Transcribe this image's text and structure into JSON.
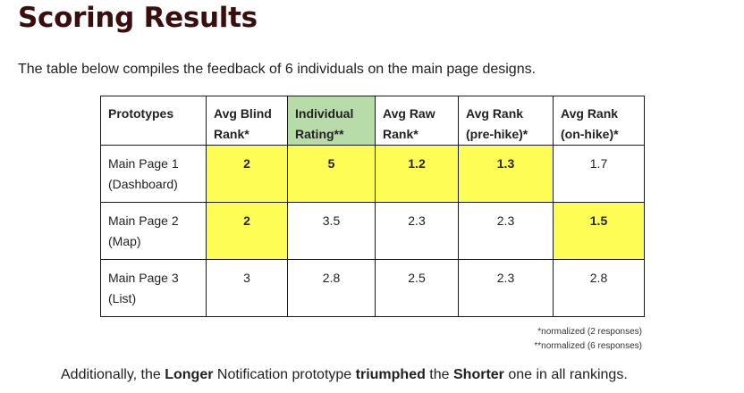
{
  "title": "Scoring Results",
  "intro": "The table below compiles the feedback of 6 individuals on the main page designs.",
  "table": {
    "headers": [
      {
        "line1": "Prototypes",
        "line2": "",
        "highlight": ""
      },
      {
        "line1": "Avg Blind",
        "line2": "Rank*",
        "highlight": ""
      },
      {
        "line1": "Individual",
        "line2": "Rating**",
        "highlight": "green"
      },
      {
        "line1": "Avg Raw",
        "line2": "Rank*",
        "highlight": ""
      },
      {
        "line1": "Avg Rank",
        "line2": "(pre-hike)*",
        "highlight": ""
      },
      {
        "line1": "Avg Rank",
        "line2": "(on-hike)*",
        "highlight": ""
      }
    ],
    "rows": [
      {
        "label1": "Main Page 1",
        "label2": "(Dashboard)",
        "cells": [
          {
            "value": "2",
            "best": true
          },
          {
            "value": "5",
            "best": true
          },
          {
            "value": "1.2",
            "best": true
          },
          {
            "value": "1.3",
            "best": true
          },
          {
            "value": "1.7",
            "best": false
          }
        ]
      },
      {
        "label1": "Main Page 2",
        "label2": "(Map)",
        "cells": [
          {
            "value": "2",
            "best": true
          },
          {
            "value": "3.5",
            "best": false
          },
          {
            "value": "2.3",
            "best": false
          },
          {
            "value": "2.3",
            "best": false
          },
          {
            "value": "1.5",
            "best": true
          }
        ]
      },
      {
        "label1": "Main Page 3",
        "label2": "(List)",
        "cells": [
          {
            "value": "3",
            "best": false
          },
          {
            "value": "2.8",
            "best": false
          },
          {
            "value": "2.5",
            "best": false
          },
          {
            "value": "2.3",
            "best": false
          },
          {
            "value": "2.8",
            "best": false
          }
        ]
      }
    ]
  },
  "footnotes": [
    "*normalized (2 responses)",
    "**normalized (6 responses)"
  ],
  "summary": {
    "t1": "Additionally, the ",
    "b1": "Longer",
    "t2": " Notification prototype ",
    "b2": "triumphed",
    "t3": " the ",
    "b3": "Shorter",
    "t4": " one in all rankings."
  },
  "colors": {
    "highlight_yellow": "#fdfd55",
    "highlight_green": "#b7dcaa",
    "title": "#3b0d0d"
  }
}
